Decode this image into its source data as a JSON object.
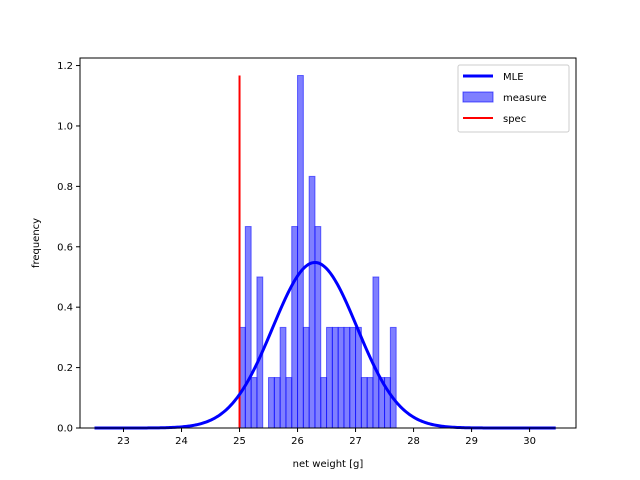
{
  "chart_data": {
    "type": "bar",
    "xlabel": "net weight [g]",
    "ylabel": "frequency",
    "xlim": [
      22.25,
      30.8
    ],
    "ylim": [
      0,
      1.225
    ],
    "xticks": [
      23,
      24,
      25,
      26,
      27,
      28,
      29,
      30
    ],
    "yticks": [
      0.0,
      0.2,
      0.4,
      0.6,
      0.8,
      1.0,
      1.2
    ],
    "grid": false,
    "legend_position": "top-right",
    "histogram": {
      "name": "measure",
      "color": "#0000ff",
      "bin_width": 0.1,
      "bins": [
        {
          "x": 25.05,
          "y": 0.333
        },
        {
          "x": 25.15,
          "y": 0.667
        },
        {
          "x": 25.25,
          "y": 0.167
        },
        {
          "x": 25.35,
          "y": 0.5
        },
        {
          "x": 25.55,
          "y": 0.167
        },
        {
          "x": 25.65,
          "y": 0.167
        },
        {
          "x": 25.75,
          "y": 0.333
        },
        {
          "x": 25.85,
          "y": 0.167
        },
        {
          "x": 25.95,
          "y": 0.667
        },
        {
          "x": 26.05,
          "y": 1.167
        },
        {
          "x": 26.15,
          "y": 0.333
        },
        {
          "x": 26.25,
          "y": 0.833
        },
        {
          "x": 26.35,
          "y": 0.667
        },
        {
          "x": 26.45,
          "y": 0.167
        },
        {
          "x": 26.55,
          "y": 0.333
        },
        {
          "x": 26.65,
          "y": 0.333
        },
        {
          "x": 26.75,
          "y": 0.333
        },
        {
          "x": 26.85,
          "y": 0.333
        },
        {
          "x": 26.95,
          "y": 0.333
        },
        {
          "x": 27.05,
          "y": 0.333
        },
        {
          "x": 27.15,
          "y": 0.167
        },
        {
          "x": 27.25,
          "y": 0.167
        },
        {
          "x": 27.35,
          "y": 0.5
        },
        {
          "x": 27.45,
          "y": 0.167
        },
        {
          "x": 27.55,
          "y": 0.167
        },
        {
          "x": 27.65,
          "y": 0.333
        }
      ]
    },
    "mle_curve": {
      "name": "MLE",
      "color": "#0000ff",
      "mean": 26.3,
      "std": 0.728,
      "x_range": [
        22.5,
        30.45
      ]
    },
    "spec_line": {
      "name": "spec",
      "color": "#ff0000",
      "x": 25.0,
      "y_range": [
        0,
        1.167
      ]
    },
    "legend": [
      "MLE",
      "measure",
      "spec"
    ]
  }
}
